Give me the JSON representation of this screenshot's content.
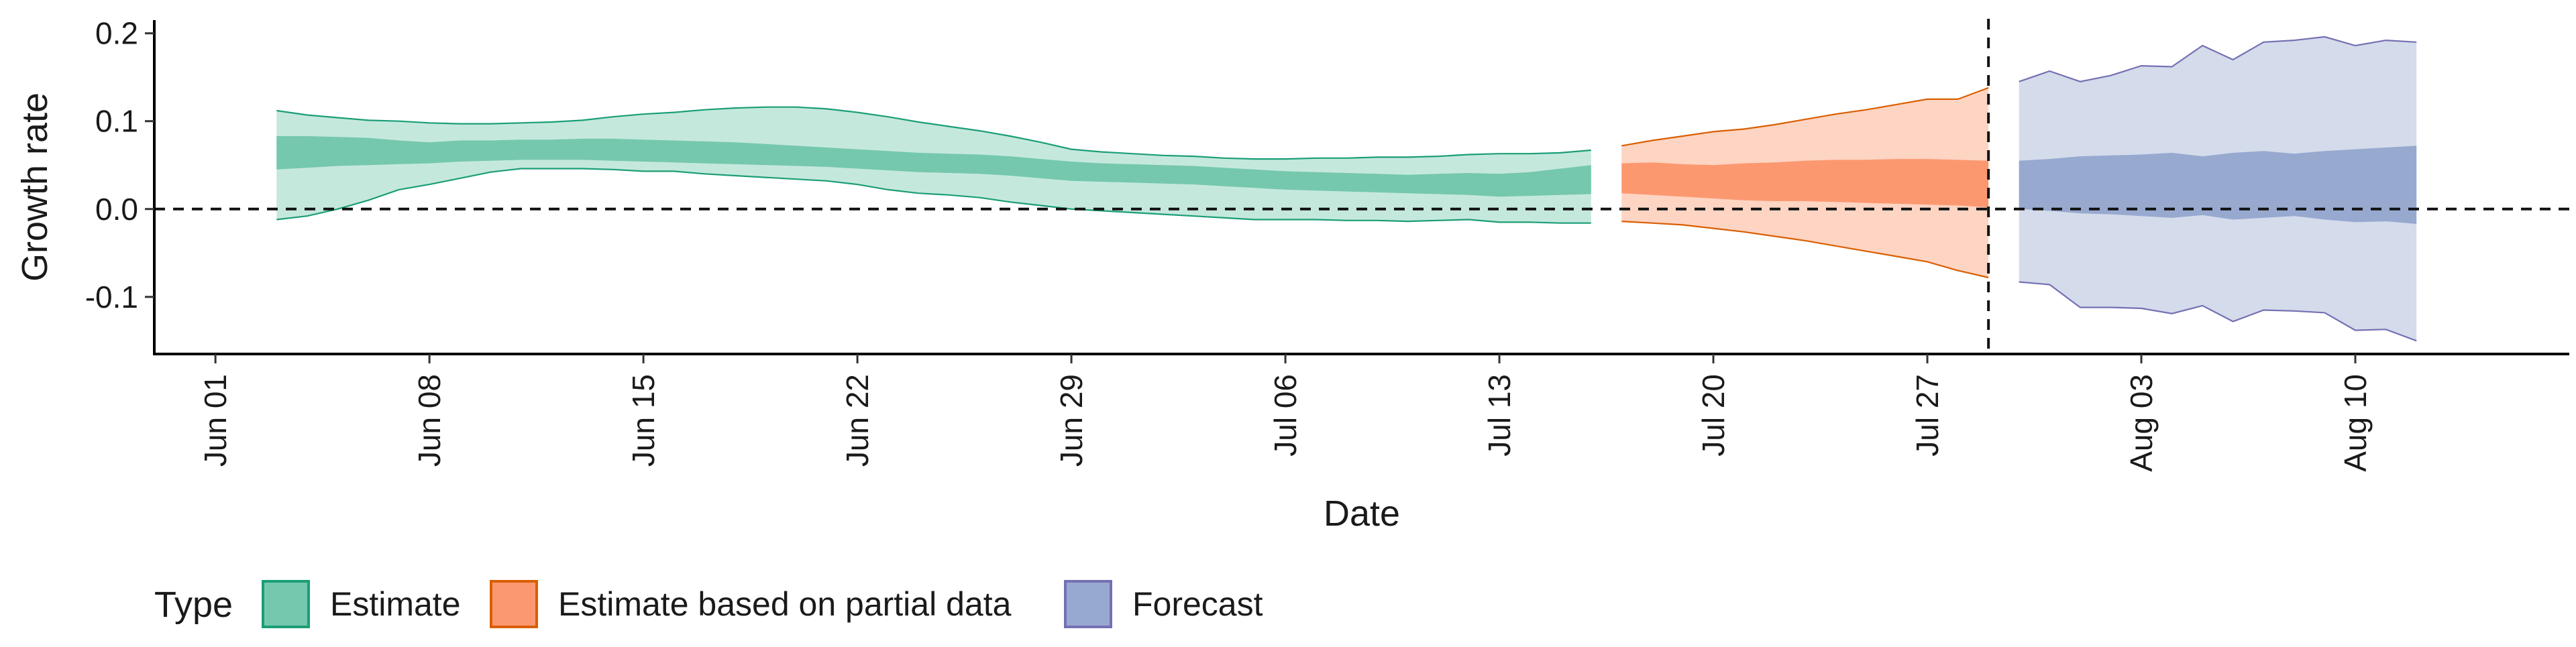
{
  "chart_data": {
    "type": "area",
    "xlabel": "Date",
    "ylabel": "Growth rate",
    "x_range": [
      "2020-05-30",
      "2020-08-17"
    ],
    "ylim": [
      -0.165,
      0.215
    ],
    "x_ticks": [
      {
        "date": "2020-06-01",
        "label": "Jun 01"
      },
      {
        "date": "2020-06-08",
        "label": "Jun 08"
      },
      {
        "date": "2020-06-15",
        "label": "Jun 15"
      },
      {
        "date": "2020-06-22",
        "label": "Jun 22"
      },
      {
        "date": "2020-06-29",
        "label": "Jun 29"
      },
      {
        "date": "2020-07-06",
        "label": "Jul 06"
      },
      {
        "date": "2020-07-13",
        "label": "Jul 13"
      },
      {
        "date": "2020-07-20",
        "label": "Jul 20"
      },
      {
        "date": "2020-07-27",
        "label": "Jul 27"
      },
      {
        "date": "2020-08-03",
        "label": "Aug 03"
      },
      {
        "date": "2020-08-10",
        "label": "Aug 10"
      }
    ],
    "y_ticks": [
      {
        "value": 0.2,
        "label": "0.2"
      },
      {
        "value": 0.1,
        "label": "0.1"
      },
      {
        "value": 0.0,
        "label": "0.0"
      },
      {
        "value": -0.1,
        "label": "-0.1"
      }
    ],
    "reference_lines": {
      "horizontal_y": 0,
      "vertical_date": "2020-07-29"
    },
    "legend": {
      "title": "Type",
      "position": "bottom-left"
    },
    "grid": false,
    "series": [
      {
        "name": "Estimate",
        "fill": "#66c2a5",
        "line": "#1b9e77",
        "dates": [
          "2020-06-03",
          "2020-06-04",
          "2020-06-05",
          "2020-06-06",
          "2020-06-07",
          "2020-06-08",
          "2020-06-09",
          "2020-06-10",
          "2020-06-11",
          "2020-06-12",
          "2020-06-13",
          "2020-06-14",
          "2020-06-15",
          "2020-06-16",
          "2020-06-17",
          "2020-06-18",
          "2020-06-19",
          "2020-06-20",
          "2020-06-21",
          "2020-06-22",
          "2020-06-23",
          "2020-06-24",
          "2020-06-25",
          "2020-06-26",
          "2020-06-27",
          "2020-06-28",
          "2020-06-29",
          "2020-06-30",
          "2020-07-01",
          "2020-07-02",
          "2020-07-03",
          "2020-07-04",
          "2020-07-05",
          "2020-07-06",
          "2020-07-07",
          "2020-07-08",
          "2020-07-09",
          "2020-07-10",
          "2020-07-11",
          "2020-07-12",
          "2020-07-13",
          "2020-07-14",
          "2020-07-15",
          "2020-07-16"
        ],
        "lower_90": [
          -0.012,
          -0.008,
          0.0,
          0.01,
          0.022,
          0.028,
          0.035,
          0.042,
          0.046,
          0.046,
          0.046,
          0.045,
          0.043,
          0.043,
          0.04,
          0.038,
          0.036,
          0.034,
          0.032,
          0.028,
          0.022,
          0.018,
          0.016,
          0.013,
          0.008,
          0.004,
          0.0,
          -0.002,
          -0.004,
          -0.006,
          -0.008,
          -0.01,
          -0.012,
          -0.012,
          -0.012,
          -0.013,
          -0.013,
          -0.014,
          -0.013,
          -0.012,
          -0.015,
          -0.015,
          -0.016,
          -0.016
        ],
        "lower_50": [
          0.045,
          0.047,
          0.049,
          0.05,
          0.051,
          0.052,
          0.054,
          0.055,
          0.056,
          0.056,
          0.056,
          0.055,
          0.054,
          0.053,
          0.052,
          0.051,
          0.05,
          0.049,
          0.048,
          0.046,
          0.044,
          0.042,
          0.041,
          0.04,
          0.038,
          0.035,
          0.032,
          0.031,
          0.03,
          0.029,
          0.028,
          0.026,
          0.024,
          0.022,
          0.021,
          0.02,
          0.019,
          0.018,
          0.017,
          0.016,
          0.014,
          0.015,
          0.016,
          0.017
        ],
        "upper_50": [
          0.083,
          0.083,
          0.082,
          0.081,
          0.078,
          0.076,
          0.078,
          0.078,
          0.079,
          0.079,
          0.08,
          0.08,
          0.079,
          0.078,
          0.077,
          0.076,
          0.074,
          0.072,
          0.07,
          0.068,
          0.066,
          0.064,
          0.063,
          0.062,
          0.06,
          0.057,
          0.054,
          0.052,
          0.051,
          0.05,
          0.049,
          0.047,
          0.045,
          0.043,
          0.042,
          0.041,
          0.04,
          0.039,
          0.04,
          0.041,
          0.04,
          0.042,
          0.046,
          0.05
        ],
        "upper_90": [
          0.112,
          0.107,
          0.104,
          0.101,
          0.1,
          0.098,
          0.097,
          0.097,
          0.098,
          0.099,
          0.101,
          0.105,
          0.108,
          0.11,
          0.113,
          0.115,
          0.116,
          0.116,
          0.114,
          0.11,
          0.105,
          0.099,
          0.094,
          0.089,
          0.083,
          0.076,
          0.068,
          0.065,
          0.063,
          0.061,
          0.06,
          0.058,
          0.057,
          0.057,
          0.058,
          0.058,
          0.059,
          0.059,
          0.06,
          0.062,
          0.063,
          0.063,
          0.064,
          0.067
        ]
      },
      {
        "name": "Estimate based on partial data",
        "fill": "#fc8d62",
        "line": "#d95f02",
        "dates": [
          "2020-07-17",
          "2020-07-18",
          "2020-07-19",
          "2020-07-20",
          "2020-07-21",
          "2020-07-22",
          "2020-07-23",
          "2020-07-24",
          "2020-07-25",
          "2020-07-26",
          "2020-07-27",
          "2020-07-28",
          "2020-07-29"
        ],
        "lower_90": [
          -0.014,
          -0.016,
          -0.018,
          -0.022,
          -0.026,
          -0.031,
          -0.036,
          -0.042,
          -0.048,
          -0.054,
          -0.06,
          -0.07,
          -0.078
        ],
        "lower_50": [
          0.018,
          0.016,
          0.014,
          0.012,
          0.01,
          0.009,
          0.009,
          0.008,
          0.007,
          0.006,
          0.005,
          0.004,
          0.002
        ],
        "upper_50": [
          0.052,
          0.053,
          0.051,
          0.05,
          0.052,
          0.053,
          0.055,
          0.056,
          0.056,
          0.057,
          0.057,
          0.056,
          0.055
        ],
        "upper_90": [
          0.072,
          0.078,
          0.083,
          0.088,
          0.091,
          0.096,
          0.102,
          0.108,
          0.113,
          0.119,
          0.125,
          0.125,
          0.138
        ]
      },
      {
        "name": "Forecast",
        "fill": "#8da0cb",
        "line": "#7570b3",
        "dates": [
          "2020-07-30",
          "2020-07-31",
          "2020-08-01",
          "2020-08-02",
          "2020-08-03",
          "2020-08-04",
          "2020-08-05",
          "2020-08-06",
          "2020-08-07",
          "2020-08-08",
          "2020-08-09",
          "2020-08-10",
          "2020-08-11",
          "2020-08-12"
        ],
        "lower_90": [
          -0.083,
          -0.086,
          -0.112,
          -0.112,
          -0.113,
          -0.119,
          -0.11,
          -0.128,
          -0.115,
          -0.116,
          -0.118,
          -0.138,
          -0.137,
          -0.15
        ],
        "lower_50": [
          0.0,
          -0.002,
          -0.005,
          -0.006,
          -0.008,
          -0.01,
          -0.007,
          -0.012,
          -0.01,
          -0.008,
          -0.012,
          -0.015,
          -0.014,
          -0.017
        ],
        "upper_50": [
          0.055,
          0.057,
          0.06,
          0.061,
          0.062,
          0.064,
          0.06,
          0.064,
          0.066,
          0.063,
          0.066,
          0.068,
          0.07,
          0.072
        ],
        "upper_90": [
          0.145,
          0.157,
          0.145,
          0.152,
          0.163,
          0.162,
          0.186,
          0.17,
          0.19,
          0.192,
          0.196,
          0.186,
          0.192,
          0.19
        ]
      }
    ]
  }
}
